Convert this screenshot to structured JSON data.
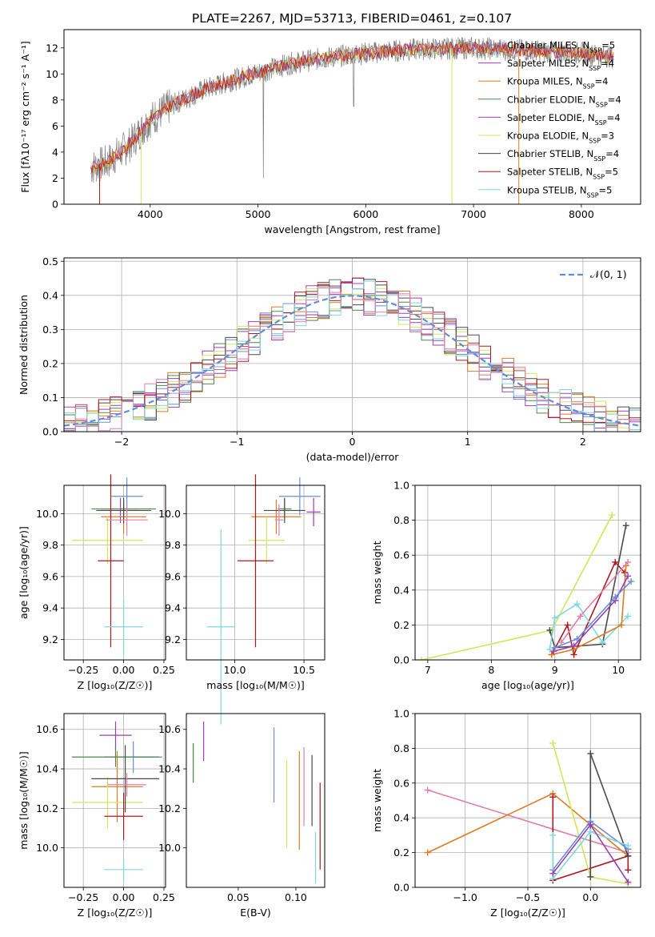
{
  "title": "PLATE=2267, MJD=53713, FIBERID=0461, z=0.107",
  "colors": {
    "Chabrier MILES": "#6a8fd8",
    "Salpeter MILES": "#9b3fb5",
    "Kroupa MILES": "#e07b22",
    "Chabrier ELODIE": "#4a8a4a",
    "Salpeter ELODIE": "#a53bbf",
    "Kroupa ELODIE": "#cfe85a",
    "Chabrier STELIB": "#4a4a4a",
    "Salpeter STELIB": "#b01820",
    "Kroupa STELIB": "#7fd8e0",
    "extra_pink": "#e080a8",
    "gauss": "#5b8fd8",
    "data": "#7f7f7f"
  },
  "legend_labels": {
    "spectrum": [
      {
        "model": "Chabrier MILES",
        "nssp": "5"
      },
      {
        "model": "Salpeter MILES",
        "nssp": "4"
      },
      {
        "model": "Kroupa MILES",
        "nssp": "4"
      },
      {
        "model": "Chabrier ELODIE",
        "nssp": "4"
      },
      {
        "model": "Salpeter ELODIE",
        "nssp": "4"
      },
      {
        "model": "Kroupa ELODIE",
        "nssp": "3"
      },
      {
        "model": "Chabrier STELIB",
        "nssp": "4"
      },
      {
        "model": "Salpeter STELIB",
        "nssp": "5"
      },
      {
        "model": "Kroupa STELIB",
        "nssp": "5"
      }
    ],
    "hist": "𝒩(0, 1)"
  },
  "chart_data": [
    {
      "type": "line",
      "panel": "spectrum",
      "xlabel": "wavelength [Angstrom, rest frame]",
      "ylabel": "Flux [fλ10⁻¹⁷ erg cm⁻² s⁻¹ A⁻¹]",
      "xlim": [
        3200,
        8550
      ],
      "ylim": [
        0,
        13.4
      ],
      "xticks": [
        4000,
        5000,
        6000,
        7000,
        8000
      ],
      "yticks": [
        0,
        2,
        4,
        6,
        8,
        10,
        12
      ],
      "grid": false,
      "legend_position": "top-right",
      "continuum_x": [
        3450,
        3600,
        3800,
        4000,
        4200,
        4500,
        4800,
        5000,
        5300,
        5600,
        6000,
        6500,
        7000,
        7500,
        8000,
        8300
      ],
      "continuum_y": [
        2.8,
        3.2,
        4.5,
        6.5,
        7.6,
        8.8,
        9.6,
        10.1,
        10.8,
        11.2,
        11.6,
        11.9,
        12.0,
        11.8,
        11.6,
        11.3
      ]
    },
    {
      "type": "bar",
      "panel": "residual-histogram",
      "xlabel": "(data-model)/error",
      "ylabel": "Normed distribution",
      "xlim": [
        -2.5,
        2.5
      ],
      "ylim": [
        0,
        0.51
      ],
      "xticks": [
        -2,
        -1,
        0,
        1,
        2
      ],
      "yticks": [
        0.0,
        0.1,
        0.2,
        0.3,
        0.4,
        0.5
      ],
      "grid": true,
      "legend_position": "top-right",
      "bin_width": 0.1,
      "curve": "N(0,1)"
    },
    {
      "type": "scatter",
      "panel": "age-vs-Z",
      "xlabel": "Z [log₁₀(Z/Z☉)]",
      "ylabel": "age  [log₁₀(age/yr)]",
      "xlim": [
        -0.37,
        0.26
      ],
      "ylim": [
        9.07,
        10.18
      ],
      "xticks": [
        -0.25,
        0.0,
        0.25
      ],
      "yticks": [
        9.2,
        9.4,
        9.6,
        9.8,
        10.0
      ],
      "grid": true,
      "points": [
        {
          "c": "Chabrier MILES",
          "x": 0.02,
          "xerr": 0.1,
          "y": 10.11,
          "yerr": 0.12
        },
        {
          "c": "Salpeter MILES",
          "x": -0.02,
          "xerr": 0.12,
          "y": 10.02,
          "yerr": 0.08
        },
        {
          "c": "Kroupa MILES",
          "x": 0.0,
          "xerr": 0.14,
          "y": 9.98,
          "yerr": 0.11
        },
        {
          "c": "Chabrier ELODIE",
          "x": 0.0,
          "xerr": 0.2,
          "y": 10.03,
          "yerr": 0.05
        },
        {
          "c": "Kroupa ELODIE",
          "x": -0.1,
          "xerr": 0.22,
          "y": 9.83,
          "yerr": 0.15
        },
        {
          "c": "Chabrier STELIB",
          "x": 0.0,
          "xerr": 0.17,
          "y": 10.02,
          "yerr": 0.08
        },
        {
          "c": "Salpeter STELIB",
          "x": -0.08,
          "xerr": 0.08,
          "y": 9.7,
          "yerr": 0.55
        },
        {
          "c": "Kroupa STELIB",
          "x": 0.0,
          "xerr": 0.12,
          "y": 9.28,
          "yerr": 0.18
        },
        {
          "c": "extra_pink",
          "x": 0.02,
          "xerr": 0.13,
          "y": 9.96,
          "yerr": 0.1
        }
      ]
    },
    {
      "type": "scatter",
      "panel": "age-vs-mass",
      "xlabel": "mass [log₁₀(M/M☉)]",
      "ylabel": "",
      "xlim": [
        9.65,
        10.65
      ],
      "ylim": [
        9.07,
        10.18
      ],
      "xticks": [
        10.0,
        10.5
      ],
      "yticks": [
        9.2,
        9.4,
        9.6,
        9.8,
        10.0
      ],
      "grid": true,
      "points": [
        {
          "c": "Chabrier MILES",
          "x": 10.47,
          "xerr": 0.15,
          "y": 10.11,
          "yerr": 0.12
        },
        {
          "c": "Salpeter MILES",
          "x": 10.57,
          "xerr": 0.05,
          "y": 10.01,
          "yerr": 0.09
        },
        {
          "c": "Kroupa MILES",
          "x": 10.3,
          "xerr": 0.18,
          "y": 9.98,
          "yerr": 0.11
        },
        {
          "c": "Chabrier ELODIE",
          "x": 10.36,
          "xerr": 0.05,
          "y": 10.03,
          "yerr": 0.06
        },
        {
          "c": "Kroupa ELODIE",
          "x": 10.23,
          "xerr": 0.13,
          "y": 9.83,
          "yerr": 0.15
        },
        {
          "c": "Chabrier STELIB",
          "x": 10.36,
          "xerr": 0.15,
          "y": 10.02,
          "yerr": 0.08
        },
        {
          "c": "Salpeter STELIB",
          "x": 10.15,
          "xerr": 0.13,
          "y": 9.7,
          "yerr": 0.55
        },
        {
          "c": "Kroupa STELIB",
          "x": 9.9,
          "xerr": 0.1,
          "y": 9.28,
          "yerr": 0.62
        },
        {
          "c": "extra_pink",
          "x": 10.32,
          "xerr": 0.03,
          "y": 9.96,
          "yerr": 0.1
        }
      ]
    },
    {
      "type": "line",
      "panel": "weight-vs-age",
      "xlabel": "age  [log₁₀(age/yr)]",
      "ylabel": "mass weight",
      "xlim": [
        6.8,
        10.35
      ],
      "ylim": [
        0,
        1.0
      ],
      "xticks": [
        7,
        8,
        9,
        10
      ],
      "yticks": [
        0.0,
        0.2,
        0.4,
        0.6,
        0.8,
        1.0
      ],
      "grid": true,
      "series": [
        {
          "c": "Kroupa ELODIE",
          "x": [
            6.9,
            8.95,
            9.9
          ],
          "y": [
            0.0,
            0.17,
            0.83
          ]
        },
        {
          "c": "Chabrier STELIB",
          "x": [
            8.92,
            9.0,
            9.75,
            10.12
          ],
          "y": [
            0.17,
            0.07,
            0.09,
            0.77
          ]
        },
        {
          "c": "Salpeter STELIB",
          "x": [
            8.95,
            9.2,
            9.3,
            9.95,
            10.1
          ],
          "y": [
            0.03,
            0.2,
            0.03,
            0.56,
            0.5
          ]
        },
        {
          "c": "Kroupa STELIB",
          "x": [
            8.92,
            9.0,
            9.35,
            9.75,
            10.15
          ],
          "y": [
            0.06,
            0.24,
            0.32,
            0.1,
            0.25
          ]
        },
        {
          "c": "Kroupa MILES",
          "x": [
            8.95,
            9.3,
            10.05,
            10.12
          ],
          "y": [
            0.03,
            0.06,
            0.2,
            0.54
          ]
        },
        {
          "c": "Salpeter MILES",
          "x": [
            8.98,
            9.3,
            9.95,
            10.15
          ],
          "y": [
            0.05,
            0.08,
            0.34,
            0.48
          ]
        },
        {
          "c": "Chabrier MILES",
          "x": [
            9.0,
            9.35,
            9.95,
            10.2
          ],
          "y": [
            0.07,
            0.12,
            0.36,
            0.45
          ]
        },
        {
          "c": "extra_pink",
          "x": [
            9.1,
            9.4,
            10.15
          ],
          "y": [
            0.1,
            0.25,
            0.56
          ]
        }
      ]
    },
    {
      "type": "scatter",
      "panel": "mass-vs-Z",
      "xlabel": "Z [log₁₀(Z/Z☉)]",
      "ylabel": "mass [log₁₀(M/M☉)]",
      "xlim": [
        -0.37,
        0.26
      ],
      "ylim": [
        9.8,
        10.68
      ],
      "xticks": [
        -0.25,
        0.0,
        0.25
      ],
      "yticks": [
        10.0,
        10.2,
        10.4,
        10.6
      ],
      "grid": true,
      "points": [
        {
          "c": "Chabrier MILES",
          "x": 0.06,
          "xerr": 0.18,
          "y": 10.46,
          "yerr": 0.08
        },
        {
          "c": "Salpeter MILES",
          "x": -0.05,
          "xerr": 0.1,
          "y": 10.57,
          "yerr": 0.07
        },
        {
          "c": "Kroupa MILES",
          "x": -0.04,
          "xerr": 0.16,
          "y": 10.31,
          "yerr": 0.18
        },
        {
          "c": "Chabrier ELODIE",
          "x": -0.05,
          "xerr": 0.27,
          "y": 10.46,
          "yerr": 0.05
        },
        {
          "c": "Kroupa ELODIE",
          "x": -0.1,
          "xerr": 0.22,
          "y": 10.23,
          "yerr": 0.13
        },
        {
          "c": "Chabrier STELIB",
          "x": 0.01,
          "xerr": 0.21,
          "y": 10.35,
          "yerr": 0.17
        },
        {
          "c": "Salpeter STELIB",
          "x": 0.0,
          "xerr": 0.12,
          "y": 10.16,
          "yerr": 0.12
        },
        {
          "c": "Kroupa STELIB",
          "x": 0.0,
          "xerr": 0.12,
          "y": 9.89,
          "yerr": 0.06
        },
        {
          "c": "extra_pink",
          "x": 0.02,
          "xerr": 0.12,
          "y": 10.32,
          "yerr": 0.06
        }
      ]
    },
    {
      "type": "scatter",
      "panel": "mass-vs-EBV",
      "xlabel": "E(B-V)",
      "ylabel": "",
      "xlim": [
        0.005,
        0.125
      ],
      "ylim": [
        9.8,
        10.68
      ],
      "xticks": [
        0.05,
        0.1
      ],
      "yticks": [
        10.0,
        10.2,
        10.4,
        10.6
      ],
      "grid": false,
      "points": [
        {
          "c": "Chabrier ELODIE",
          "x": 0.011,
          "y": 10.43,
          "yerr": 0.1
        },
        {
          "c": "Salpeter ELODIE",
          "x": 0.02,
          "y": 10.54,
          "yerr": 0.1
        },
        {
          "c": "Chabrier MILES",
          "x": 0.081,
          "y": 10.42,
          "yerr": 0.19
        },
        {
          "c": "Kroupa ELODIE",
          "x": 0.092,
          "y": 10.22,
          "yerr": 0.22
        },
        {
          "c": "Kroupa MILES",
          "x": 0.103,
          "y": 10.24,
          "yerr": 0.25
        },
        {
          "c": "extra_pink",
          "x": 0.107,
          "y": 10.31,
          "yerr": 0.2
        },
        {
          "c": "Chabrier STELIB",
          "x": 0.114,
          "y": 10.29,
          "yerr": 0.18
        },
        {
          "c": "Kroupa STELIB",
          "x": 0.117,
          "y": 9.95,
          "yerr": 0.13
        },
        {
          "c": "Salpeter STELIB",
          "x": 0.121,
          "y": 10.11,
          "yerr": 0.22
        }
      ]
    },
    {
      "type": "line",
      "panel": "weight-vs-Z",
      "xlabel": "Z [log₁₀(Z/Z☉)]",
      "ylabel": "mass weight",
      "xlim": [
        -1.4,
        0.4
      ],
      "ylim": [
        0,
        1.0
      ],
      "xticks": [
        -1.0,
        -0.5,
        0.0
      ],
      "yticks": [
        0.0,
        0.2,
        0.4,
        0.6,
        0.8,
        1.0
      ],
      "grid": true,
      "series": [
        {
          "c": "extra_pink",
          "x": [
            -1.3,
            0.3
          ],
          "y": [
            0.56,
            0.2
          ]
        },
        {
          "c": "Kroupa MILES",
          "x": [
            -1.3,
            -0.3,
            0.3
          ],
          "y": [
            0.2,
            0.54,
            0.18
          ]
        },
        {
          "c": "Salpeter STELIB",
          "x": [
            -0.3,
            -0.3,
            0.3,
            0.3
          ],
          "y": [
            0.52,
            0.04,
            0.18,
            0.1
          ]
        },
        {
          "c": "Kroupa ELODIE",
          "x": [
            -0.3,
            0.0,
            0.3
          ],
          "y": [
            0.83,
            0.06,
            0.02
          ]
        },
        {
          "c": "Chabrier STELIB",
          "x": [
            0.0,
            0.0,
            0.3
          ],
          "y": [
            0.06,
            0.77,
            0.18
          ]
        },
        {
          "c": "Chabrier MILES",
          "x": [
            -0.3,
            0.0,
            0.3
          ],
          "y": [
            0.1,
            0.38,
            0.22
          ]
        },
        {
          "c": "Kroupa STELIB",
          "x": [
            -0.3,
            -0.3,
            0.0,
            0.3
          ],
          "y": [
            0.3,
            0.05,
            0.32,
            0.24
          ]
        },
        {
          "c": "Salpeter MILES",
          "x": [
            -0.3,
            0.0,
            0.3
          ],
          "y": [
            0.08,
            0.36,
            0.03
          ]
        }
      ]
    }
  ]
}
